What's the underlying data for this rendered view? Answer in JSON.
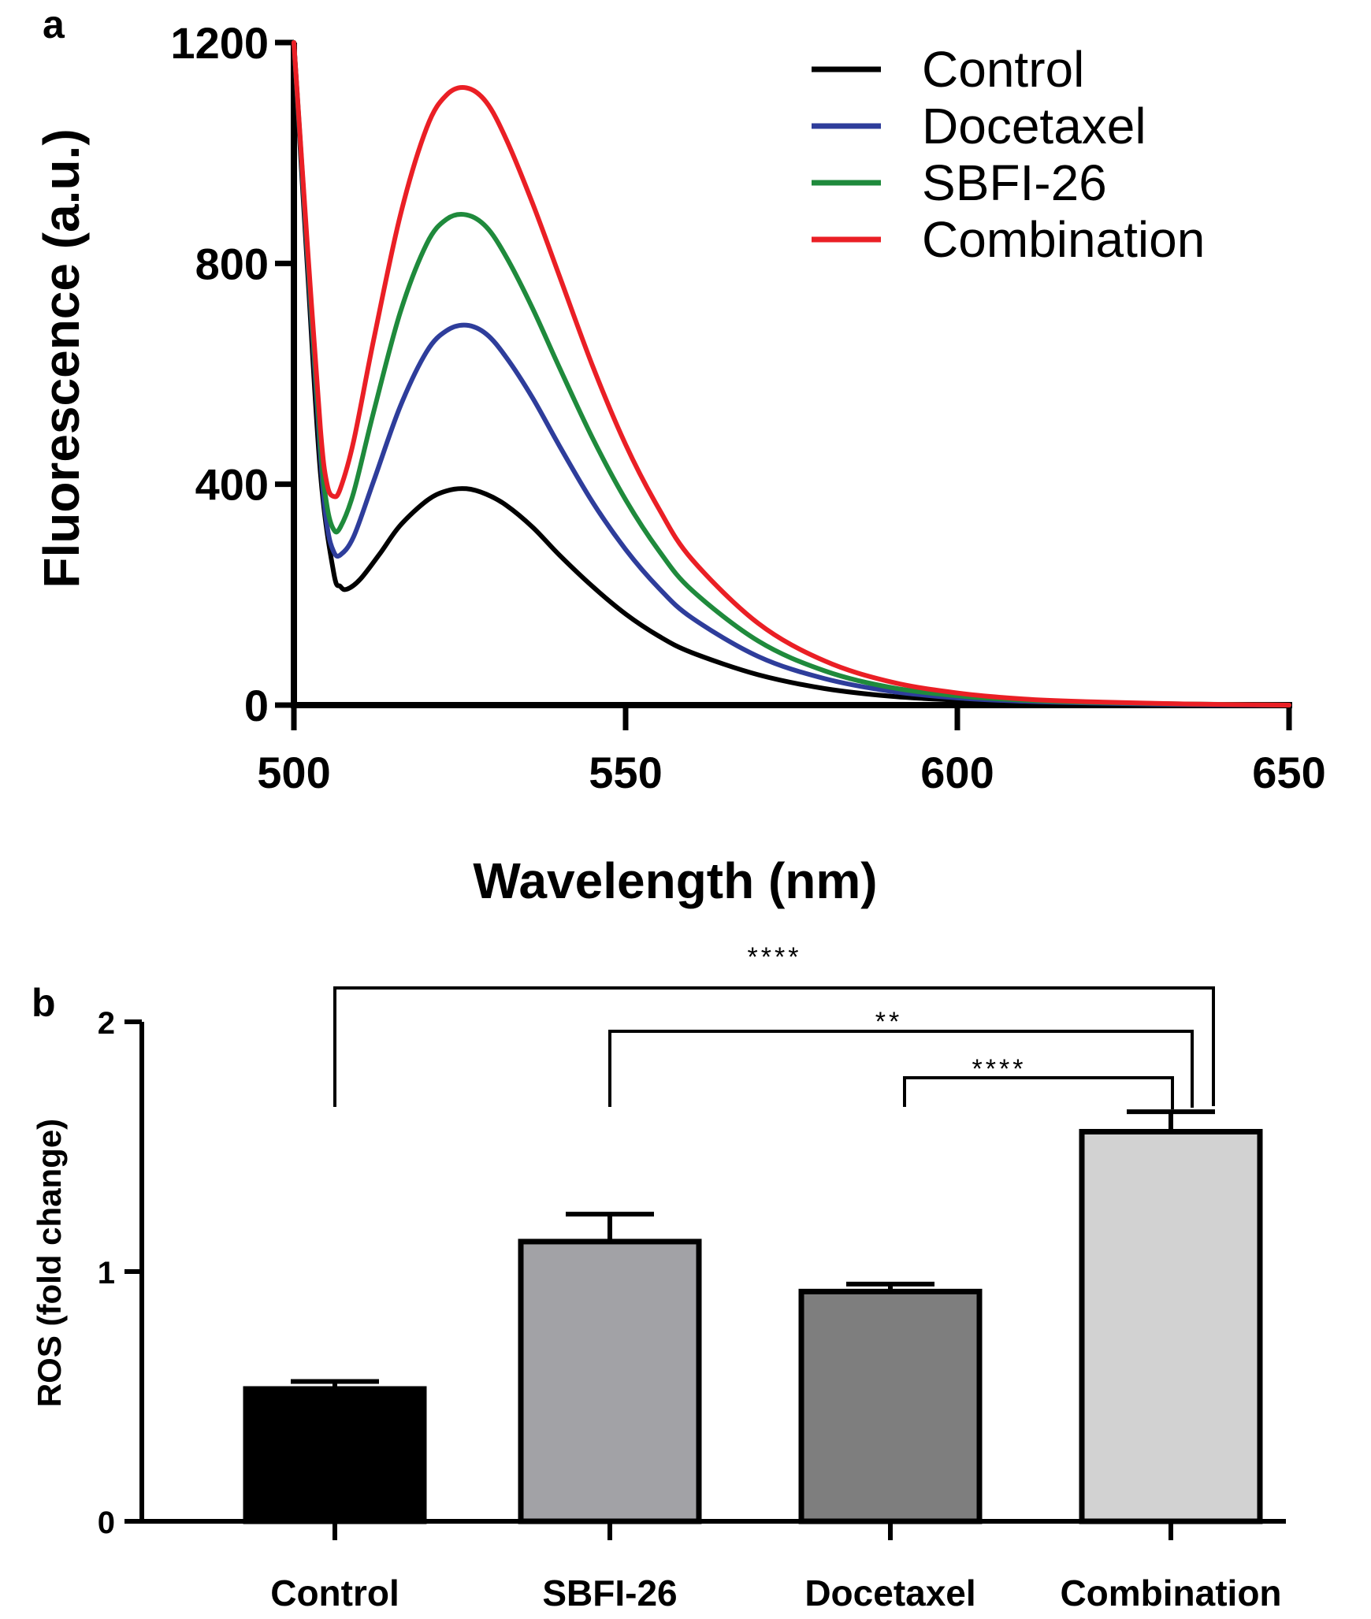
{
  "chart_data": [
    {
      "panel": "a",
      "type": "line",
      "xlabel": "Wavelength (nm)",
      "ylabel": "Fluorescence (a.u.)",
      "xlim": [
        500,
        650
      ],
      "ylim": [
        0,
        1200
      ],
      "xticks": [
        "500",
        "550",
        "600",
        "650"
      ],
      "yticks": [
        "0",
        "400",
        "800",
        "1200"
      ],
      "legend_position": "top-right",
      "series": [
        {
          "name": "Control",
          "color": "#000000",
          "x": [
            500,
            502,
            504,
            506,
            507,
            508,
            510,
            513,
            516,
            520,
            523,
            526,
            529,
            532,
            536,
            540,
            545,
            550,
            555,
            560,
            570,
            580,
            590,
            600,
            610,
            620,
            635,
            650
          ],
          "y": [
            1200,
            800,
            420,
            240,
            215,
            210,
            228,
            275,
            325,
            370,
            388,
            392,
            382,
            362,
            322,
            272,
            215,
            165,
            125,
            95,
            55,
            30,
            16,
            9,
            5,
            3,
            1,
            0
          ]
        },
        {
          "name": "Docetaxel",
          "color": "#2e3d9b",
          "x": [
            500,
            502,
            504,
            505,
            506,
            507,
            509,
            512,
            516,
            520,
            523,
            526,
            529,
            532,
            536,
            540,
            545,
            550,
            555,
            560,
            570,
            580,
            590,
            600,
            610,
            620,
            635,
            650
          ],
          "y": [
            1200,
            820,
            450,
            325,
            278,
            272,
            305,
            405,
            540,
            640,
            678,
            688,
            672,
            630,
            556,
            470,
            368,
            282,
            212,
            158,
            88,
            48,
            25,
            13,
            7,
            4,
            1,
            0
          ]
        },
        {
          "name": "SBFI-26",
          "color": "#1f8a3c",
          "x": [
            500,
            502,
            504,
            505,
            506,
            507,
            509,
            512,
            516,
            520,
            523,
            526,
            529,
            532,
            536,
            540,
            545,
            550,
            555,
            560,
            570,
            580,
            590,
            600,
            610,
            620,
            635,
            650
          ],
          "y": [
            1200,
            830,
            470,
            360,
            318,
            322,
            385,
            530,
            710,
            835,
            880,
            888,
            866,
            812,
            718,
            612,
            484,
            372,
            280,
            208,
            116,
            62,
            32,
            17,
            9,
            5,
            2,
            0
          ]
        },
        {
          "name": "Combination",
          "color": "#ea1f25",
          "x": [
            500,
            502,
            504,
            505,
            506,
            507,
            509,
            512,
            516,
            520,
            523,
            526,
            529,
            532,
            536,
            540,
            545,
            550,
            555,
            560,
            570,
            580,
            590,
            600,
            610,
            620,
            635,
            650
          ],
          "y": [
            1200,
            840,
            500,
            400,
            378,
            392,
            478,
            660,
            885,
            1045,
            1105,
            1118,
            1092,
            1025,
            908,
            778,
            615,
            472,
            356,
            264,
            148,
            80,
            42,
            22,
            11,
            6,
            2,
            0
          ]
        }
      ]
    },
    {
      "panel": "b",
      "type": "bar",
      "ylabel": "ROS (fold change)",
      "ylim": [
        0,
        2
      ],
      "yticks": [
        "0",
        "1",
        "2"
      ],
      "categories": [
        "Control",
        "SBFI-26",
        "Docetaxel",
        "Combination"
      ],
      "values": [
        0.53,
        1.12,
        0.92,
        1.56
      ],
      "errors": [
        0.03,
        0.11,
        0.03,
        0.08
      ],
      "colors": [
        "#000000",
        "#a2a2a6",
        "#7e7e7e",
        "#d2d2d2"
      ],
      "significance": [
        {
          "from": "Control",
          "to": "Combination",
          "label": "****"
        },
        {
          "from": "SBFI-26",
          "to": "Combination",
          "label": "**"
        },
        {
          "from": "Docetaxel",
          "to": "Combination",
          "label": "****"
        }
      ]
    }
  ]
}
